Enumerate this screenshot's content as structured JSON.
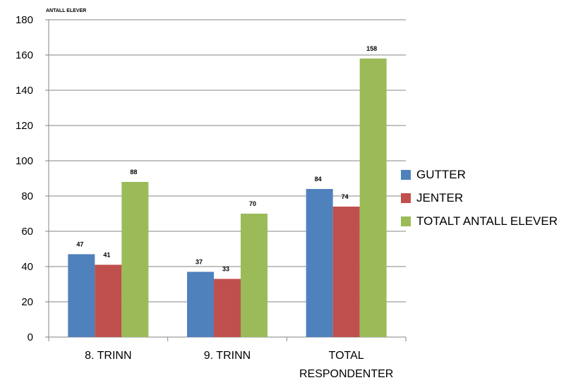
{
  "chart_data": {
    "type": "bar",
    "ylabel": "ANTALL ELEVER",
    "ylim": [
      0,
      180
    ],
    "ytick_step": 20,
    "categories": [
      [
        "8. TRINN"
      ],
      [
        "9. TRINN"
      ],
      [
        "TOTAL",
        "RESPONDENTER"
      ]
    ],
    "series": [
      {
        "name": "GUTTER",
        "color": "#4f81bd",
        "values": [
          47,
          37,
          84
        ]
      },
      {
        "name": "JENTER",
        "color": "#c0504d",
        "values": [
          41,
          33,
          74
        ]
      },
      {
        "name": "TOTALT ANTALL ELEVER",
        "color": "#9bbb59",
        "values": [
          88,
          70,
          158
        ]
      }
    ],
    "legend_position": "right",
    "grid": true
  }
}
